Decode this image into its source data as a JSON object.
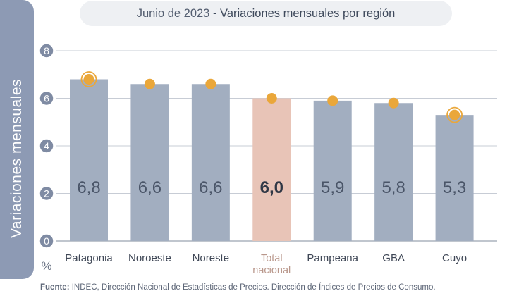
{
  "title": {
    "period": "Junio de 2023",
    "separator": " - ",
    "subject": "Variaciones mensuales por región"
  },
  "y_axis_side_label": "Variaciones  mensuales",
  "unit_label": "%",
  "footer": {
    "label": "Fuente:",
    "text": " INDEC, Dirección Nacional de Estadísticas de Precios. Dirección de Índices de Precios de Consumo."
  },
  "colors": {
    "bar": "#a2aec0",
    "bar_highlight": "#e8c4b7",
    "marker": "#eaa73a",
    "tick_badge": "#7f8ba3",
    "grid": "#c7ccd5",
    "value_text": "#4a5568",
    "highlight_text": "#2f3745",
    "highlight_label": "#b9978b"
  },
  "chart_data": {
    "type": "bar",
    "title": "Junio de 2023 - Variaciones mensuales por región",
    "ylabel": "Variaciones mensuales",
    "unit": "%",
    "ylim": [
      0,
      8
    ],
    "yticks": [
      0,
      2,
      4,
      6,
      8
    ],
    "grid": true,
    "categories": [
      [
        "Patagonia"
      ],
      [
        "Noroeste"
      ],
      [
        "Noreste"
      ],
      [
        "Total",
        "nacional"
      ],
      [
        "Pampeana"
      ],
      [
        "GBA"
      ],
      [
        "Cuyo"
      ]
    ],
    "values": [
      6.8,
      6.6,
      6.6,
      6.0,
      5.9,
      5.8,
      5.3
    ],
    "value_labels": [
      "6,8",
      "6,6",
      "6,6",
      "6,0",
      "5,9",
      "5,8",
      "5,3"
    ],
    "highlight_index": 3,
    "ringed_markers": [
      0,
      6
    ]
  }
}
